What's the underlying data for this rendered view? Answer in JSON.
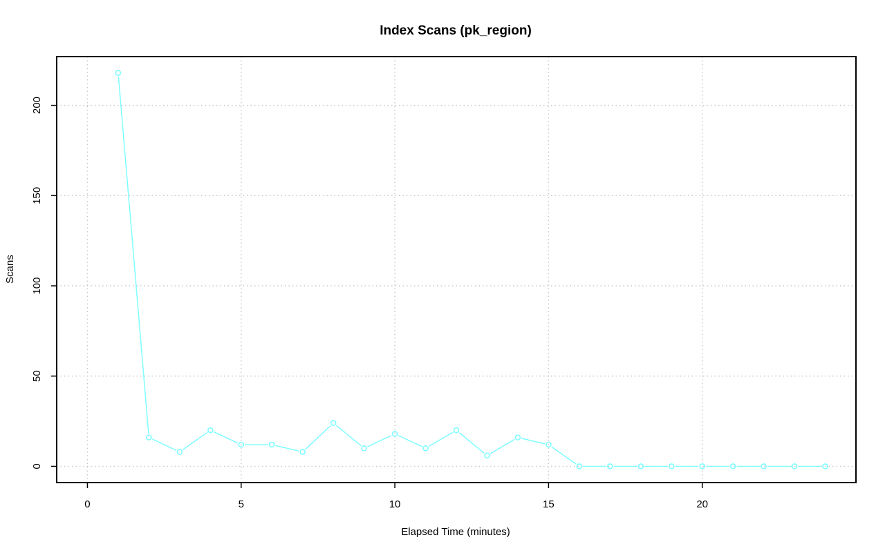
{
  "chart_data": {
    "type": "line",
    "title": "Index Scans (pk_region)",
    "xlabel": "Elapsed Time (minutes)",
    "ylabel": "Scans",
    "xlim": [
      -1,
      25
    ],
    "ylim": [
      -9,
      227
    ],
    "x_ticks": [
      0,
      5,
      10,
      15,
      20
    ],
    "y_ticks": [
      0,
      50,
      100,
      150,
      200
    ],
    "grid": true,
    "grid_style": "dotted",
    "line_color": "#7fffff",
    "marker": "open-circle",
    "series": [
      {
        "x": [
          1,
          2,
          3,
          4,
          5,
          6,
          7,
          8,
          9,
          10,
          11,
          12,
          13,
          14,
          15,
          16,
          17,
          18,
          19,
          20,
          21,
          22,
          23,
          24
        ],
        "values": [
          218,
          16,
          8,
          20,
          12,
          12,
          8,
          24,
          10,
          18,
          10,
          20,
          6,
          16,
          12,
          0,
          0,
          0,
          0,
          0,
          0,
          0,
          0,
          0
        ]
      }
    ]
  }
}
